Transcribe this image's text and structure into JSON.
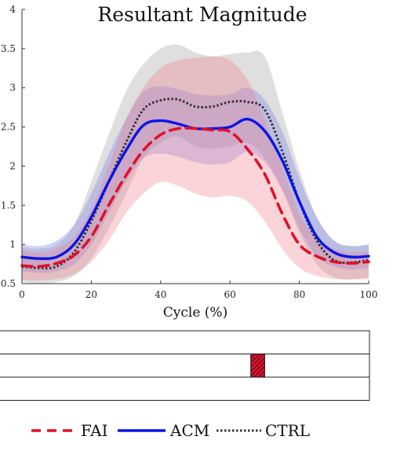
{
  "chart_data": {
    "type": "line",
    "title": "Resultant Magnitude",
    "xlabel": "Cycle (%)",
    "ylabel": "",
    "xlim": [
      0,
      100
    ],
    "ylim": [
      0.5,
      4
    ],
    "xticks": [
      0,
      20,
      40,
      60,
      80,
      100
    ],
    "yticks": [
      0.5,
      1,
      1.5,
      2,
      2.5,
      3,
      3.5,
      4
    ],
    "x": [
      0,
      5,
      10,
      15,
      20,
      25,
      30,
      35,
      40,
      45,
      50,
      55,
      60,
      65,
      70,
      75,
      80,
      85,
      90,
      95,
      100
    ],
    "series": [
      {
        "name": "CTRL",
        "color": "#333333",
        "style": "dotted",
        "band_color": "#9a9a9a",
        "values": [
          0.72,
          0.7,
          0.72,
          0.9,
          1.3,
          1.8,
          2.3,
          2.72,
          2.84,
          2.85,
          2.76,
          2.76,
          2.82,
          2.82,
          2.72,
          2.2,
          1.55,
          1.05,
          0.8,
          0.77,
          0.8
        ],
        "upper": [
          0.96,
          0.95,
          1.0,
          1.25,
          1.8,
          2.4,
          2.95,
          3.3,
          3.5,
          3.55,
          3.45,
          3.4,
          3.43,
          3.45,
          3.4,
          2.7,
          1.95,
          1.35,
          1.05,
          0.98,
          1.0
        ],
        "lower": [
          0.52,
          0.5,
          0.52,
          0.6,
          0.82,
          1.2,
          1.65,
          2.1,
          2.3,
          2.38,
          2.25,
          2.22,
          2.25,
          2.3,
          2.1,
          1.7,
          1.15,
          0.75,
          0.58,
          0.56,
          0.58
        ]
      },
      {
        "name": "ACM",
        "color": "#0a14e6",
        "style": "solid",
        "band_color": "#6f78e8",
        "values": [
          0.84,
          0.82,
          0.84,
          1.0,
          1.35,
          1.8,
          2.2,
          2.52,
          2.58,
          2.54,
          2.48,
          2.48,
          2.5,
          2.6,
          2.45,
          2.08,
          1.55,
          1.1,
          0.9,
          0.84,
          0.85
        ],
        "upper": [
          1.0,
          0.98,
          1.05,
          1.25,
          1.65,
          2.15,
          2.6,
          2.95,
          3.02,
          2.98,
          2.92,
          2.9,
          2.92,
          3.0,
          2.85,
          2.45,
          1.85,
          1.35,
          1.05,
          0.98,
          1.0
        ],
        "lower": [
          0.66,
          0.64,
          0.66,
          0.75,
          1.0,
          1.4,
          1.8,
          2.1,
          2.16,
          2.12,
          2.05,
          2.02,
          2.05,
          2.18,
          2.05,
          1.7,
          1.2,
          0.85,
          0.72,
          0.68,
          0.7
        ]
      },
      {
        "name": "FAI",
        "color": "#e0102a",
        "style": "dashed",
        "band_color": "#f07a85",
        "values": [
          0.73,
          0.72,
          0.76,
          0.86,
          1.1,
          1.5,
          1.88,
          2.2,
          2.4,
          2.48,
          2.48,
          2.46,
          2.44,
          2.22,
          1.9,
          1.4,
          1.0,
          0.85,
          0.78,
          0.76,
          0.78
        ],
        "upper": [
          0.92,
          0.9,
          0.95,
          1.1,
          1.45,
          2.0,
          2.6,
          3.0,
          3.25,
          3.35,
          3.38,
          3.4,
          3.35,
          3.1,
          2.6,
          2.0,
          1.4,
          1.08,
          0.95,
          0.9,
          0.92
        ],
        "lower": [
          0.55,
          0.54,
          0.56,
          0.62,
          0.78,
          1.05,
          1.4,
          1.65,
          1.8,
          1.75,
          1.65,
          1.6,
          1.62,
          1.55,
          1.3,
          0.95,
          0.7,
          0.6,
          0.56,
          0.55,
          0.56
        ]
      }
    ],
    "significance": {
      "rows": 3,
      "marks": [
        {
          "row": 2,
          "x_start": 66,
          "x_end": 70,
          "pattern": "hatched",
          "color": "#e0102a"
        }
      ]
    },
    "legend": {
      "position": "bottom",
      "entries": [
        {
          "label": "FAI",
          "color": "#e0102a",
          "style": "dashed"
        },
        {
          "label": "ACM",
          "color": "#0a14e6",
          "style": "solid"
        },
        {
          "label": "CTRL",
          "color": "#333333",
          "style": "dotted"
        }
      ]
    }
  }
}
